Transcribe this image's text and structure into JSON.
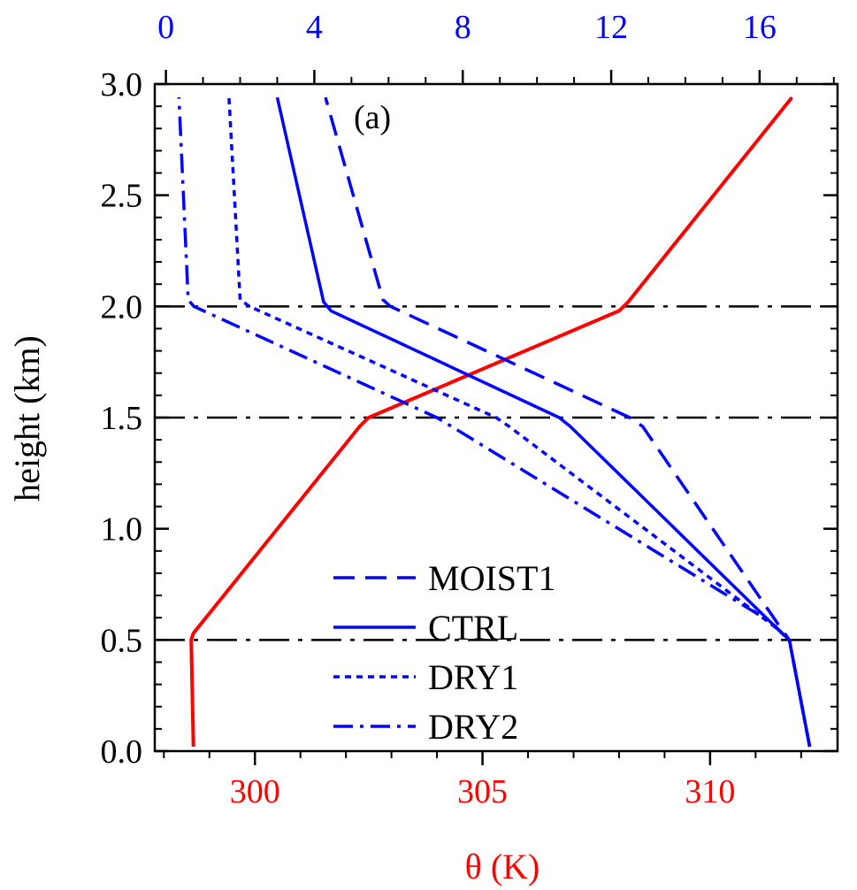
{
  "chart_data": {
    "type": "line",
    "panel_label": "(a)",
    "ylabel": "height (km)",
    "ylim": [
      0,
      3
    ],
    "yticks": [
      "0.0",
      "0.5",
      "1.0",
      "1.5",
      "2.0",
      "2.5",
      "3.0"
    ],
    "ytick_values": [
      0,
      0.5,
      1.0,
      1.5,
      2.0,
      2.5,
      3.0
    ],
    "x_bottom": {
      "label": "θ (K)",
      "color": "#ff0000",
      "lim": [
        297.8,
        312.8
      ],
      "ticks": [
        "300",
        "305",
        "310"
      ],
      "tick_values": [
        300,
        305,
        310
      ]
    },
    "x_top": {
      "color": "#0000ff",
      "lim": [
        -0.3,
        18.1
      ],
      "ticks": [
        "0",
        "4",
        "8",
        "12",
        "16"
      ],
      "tick_values": [
        0,
        4,
        8,
        12,
        16
      ]
    },
    "reference_lines": [
      {
        "y": 0.5,
        "style": "dash-dot",
        "color": "#000000"
      },
      {
        "y": 1.5,
        "style": "dash-dot",
        "color": "#000000"
      },
      {
        "y": 2.0,
        "style": "dash-dot",
        "color": "#000000"
      }
    ],
    "series": [
      {
        "axis": "bottom",
        "color": "#ff0000",
        "dash": "solid",
        "points": [
          [
            298.65,
            0.02
          ],
          [
            298.6,
            0.5
          ],
          [
            298.65,
            0.53
          ],
          [
            302.3,
            1.46
          ],
          [
            302.5,
            1.5
          ],
          [
            308.0,
            1.98
          ],
          [
            308.2,
            2.02
          ],
          [
            311.8,
            2.94
          ]
        ]
      },
      {
        "name": "MOIST1",
        "axis": "top",
        "color": "#0000ff",
        "dash": "dash",
        "points": [
          [
            17.35,
            0.02
          ],
          [
            16.8,
            0.5
          ],
          [
            16.5,
            0.57
          ],
          [
            12.85,
            1.46
          ],
          [
            12.5,
            1.5
          ],
          [
            6.05,
            2.0
          ],
          [
            5.85,
            2.03
          ],
          [
            4.3,
            2.94
          ]
        ]
      },
      {
        "name": "CTRL",
        "axis": "top",
        "color": "#0000ff",
        "dash": "solid",
        "points": [
          [
            17.35,
            0.02
          ],
          [
            16.8,
            0.5
          ],
          [
            16.6,
            0.53
          ],
          [
            10.9,
            1.46
          ],
          [
            10.6,
            1.5
          ],
          [
            4.45,
            1.98
          ],
          [
            4.25,
            2.02
          ],
          [
            3.0,
            2.94
          ]
        ]
      },
      {
        "name": "DRY1",
        "axis": "top",
        "color": "#0000ff",
        "dash": "dot",
        "points": [
          [
            17.35,
            0.02
          ],
          [
            16.8,
            0.5
          ],
          [
            16.4,
            0.56
          ],
          [
            9.25,
            1.46
          ],
          [
            8.9,
            1.5
          ],
          [
            2.25,
            2.0
          ],
          [
            2.0,
            2.03
          ],
          [
            1.7,
            2.94
          ]
        ]
      },
      {
        "name": "DRY2",
        "axis": "top",
        "color": "#0000ff",
        "dash": "dash-dot",
        "points": [
          [
            17.35,
            0.02
          ],
          [
            16.8,
            0.5
          ],
          [
            16.3,
            0.58
          ],
          [
            7.7,
            1.46
          ],
          [
            7.3,
            1.5
          ],
          [
            0.75,
            2.0
          ],
          [
            0.6,
            2.03
          ],
          [
            0.35,
            2.94
          ]
        ]
      }
    ],
    "legend": {
      "position": "lower-center",
      "entries": [
        {
          "label": "MOIST1",
          "dash": "dash"
        },
        {
          "label": "CTRL",
          "dash": "solid"
        },
        {
          "label": "DRY1",
          "dash": "dot"
        },
        {
          "label": "DRY2",
          "dash": "dash-dot"
        }
      ]
    },
    "grid": false
  }
}
